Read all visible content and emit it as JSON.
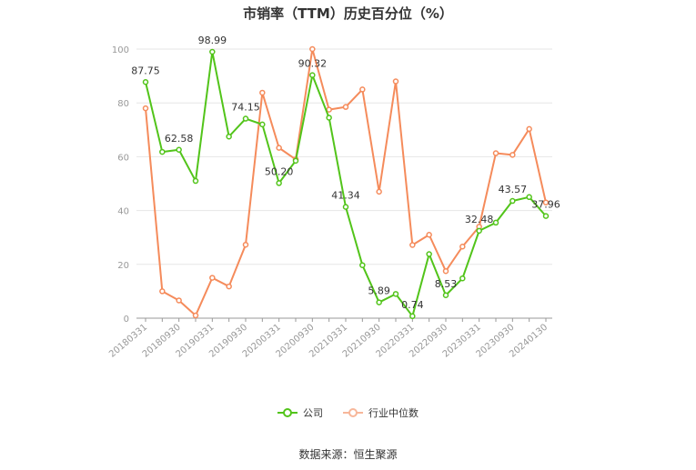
{
  "title": "市销率（TTM）历史百分位（%）",
  "source": "数据来源：恒生聚源",
  "legend": [
    {
      "label": "公司",
      "color": "#52c41a"
    },
    {
      "label": "行业中位数",
      "color": "#f58b5b"
    }
  ],
  "chart_data": {
    "type": "line",
    "x": [
      "20180331",
      "20180630",
      "20180930",
      "20181231",
      "20190331",
      "20190630",
      "20190930",
      "20191231",
      "20200331",
      "20200630",
      "20200930",
      "20201231",
      "20210331",
      "20210630",
      "20210930",
      "20211231",
      "20220331",
      "20220630",
      "20220930",
      "20221231",
      "20230331",
      "20230630",
      "20230930",
      "20231231",
      "20240130"
    ],
    "x_tick_labels": [
      "20180331",
      "20180930",
      "20190331",
      "20190930",
      "20200331",
      "20200930",
      "20210331",
      "20210930",
      "20220331",
      "20220930",
      "20230331",
      "20230930",
      "20240130"
    ],
    "ylim": [
      0,
      100
    ],
    "y_ticks": [
      0,
      20,
      40,
      60,
      80,
      100
    ],
    "grid": true,
    "legend_position": "bottom",
    "series": [
      {
        "name": "公司",
        "color": "#52c41a",
        "values": [
          87.75,
          61.8,
          62.58,
          51.0,
          98.99,
          67.5,
          74.15,
          72.0,
          50.2,
          58.5,
          90.32,
          74.5,
          41.34,
          19.7,
          5.89,
          9.0,
          0.74,
          23.8,
          8.53,
          14.8,
          32.48,
          35.5,
          43.57,
          45.0,
          37.96
        ]
      },
      {
        "name": "行业中位数",
        "color": "#f58b5b",
        "values": [
          78.0,
          10.0,
          6.6,
          1.0,
          15.0,
          11.8,
          27.3,
          83.8,
          63.3,
          59.0,
          100.0,
          77.5,
          78.5,
          85.0,
          47.0,
          88.0,
          27.2,
          31.0,
          17.5,
          26.6,
          34.0,
          61.3,
          60.7,
          70.3,
          43.0
        ]
      }
    ],
    "data_labels": [
      {
        "index": 0,
        "text": "87.75"
      },
      {
        "index": 2,
        "text": "62.58"
      },
      {
        "index": 4,
        "text": "98.99"
      },
      {
        "index": 6,
        "text": "74.15"
      },
      {
        "index": 8,
        "text": "50.20"
      },
      {
        "index": 10,
        "text": "90.32"
      },
      {
        "index": 12,
        "text": "41.34"
      },
      {
        "index": 14,
        "text": "5.89"
      },
      {
        "index": 16,
        "text": "0.74"
      },
      {
        "index": 18,
        "text": "8.53"
      },
      {
        "index": 20,
        "text": "32.48"
      },
      {
        "index": 22,
        "text": "43.57"
      },
      {
        "index": 24,
        "text": "37.96"
      }
    ]
  }
}
